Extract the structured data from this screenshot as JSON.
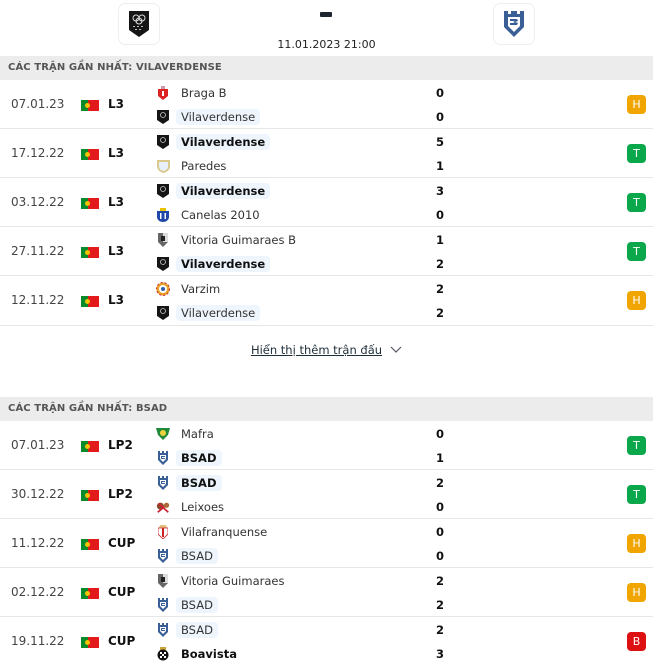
{
  "header": {
    "home_logo": "vilaverdense-crest",
    "away_logo": "bsad-crest",
    "score": "-",
    "match_time": "11.01.2023 21:00"
  },
  "colors": {
    "draw": "#f0a500",
    "win": "#0aa84a",
    "loss": "#dd1111",
    "highlight": "#eef5fd"
  },
  "sections": [
    {
      "title": "CÁC TRẬN GẦN NHẤT: VILAVERDENSE",
      "matches": [
        {
          "date": "07.01.23",
          "league": "L3",
          "home": {
            "name": "Braga B",
            "logo": "braga-crest",
            "hl": false,
            "win": false
          },
          "away": {
            "name": "Vilaverdense",
            "logo": "vilaverdense-crest",
            "hl": true,
            "win": false
          },
          "score_home": "0",
          "score_away": "0",
          "result": "H",
          "result_type": "draw"
        },
        {
          "date": "17.12.22",
          "league": "L3",
          "home": {
            "name": "Vilaverdense",
            "logo": "vilaverdense-crest",
            "hl": true,
            "win": true
          },
          "away": {
            "name": "Paredes",
            "logo": "paredes-crest",
            "hl": false,
            "win": false
          },
          "score_home": "5",
          "score_away": "1",
          "result": "T",
          "result_type": "win"
        },
        {
          "date": "03.12.22",
          "league": "L3",
          "home": {
            "name": "Vilaverdense",
            "logo": "vilaverdense-crest",
            "hl": true,
            "win": true
          },
          "away": {
            "name": "Canelas 2010",
            "logo": "canelas-crest",
            "hl": false,
            "win": false
          },
          "score_home": "3",
          "score_away": "0",
          "result": "T",
          "result_type": "win"
        },
        {
          "date": "27.11.22",
          "league": "L3",
          "home": {
            "name": "Vitoria Guimaraes B",
            "logo": "vitoria-crest",
            "hl": false,
            "win": false
          },
          "away": {
            "name": "Vilaverdense",
            "logo": "vilaverdense-crest",
            "hl": true,
            "win": true
          },
          "score_home": "1",
          "score_away": "2",
          "result": "T",
          "result_type": "win"
        },
        {
          "date": "12.11.22",
          "league": "L3",
          "home": {
            "name": "Varzim",
            "logo": "varzim-crest",
            "hl": false,
            "win": false
          },
          "away": {
            "name": "Vilaverdense",
            "logo": "vilaverdense-crest",
            "hl": true,
            "win": false
          },
          "score_home": "2",
          "score_away": "2",
          "result": "H",
          "result_type": "draw"
        }
      ],
      "show_more": "Hiển thị thêm trận đấu"
    },
    {
      "title": "CÁC TRẬN GẦN NHẤT: BSAD",
      "matches": [
        {
          "date": "07.01.23",
          "league": "LP2",
          "home": {
            "name": "Mafra",
            "logo": "mafra-crest",
            "hl": false,
            "win": false
          },
          "away": {
            "name": "BSAD",
            "logo": "bsad-crest",
            "hl": true,
            "win": true
          },
          "score_home": "0",
          "score_away": "1",
          "result": "T",
          "result_type": "win"
        },
        {
          "date": "30.12.22",
          "league": "LP2",
          "home": {
            "name": "BSAD",
            "logo": "bsad-crest",
            "hl": true,
            "win": true
          },
          "away": {
            "name": "Leixoes",
            "logo": "leixoes-crest",
            "hl": false,
            "win": false
          },
          "score_home": "2",
          "score_away": "0",
          "result": "T",
          "result_type": "win"
        },
        {
          "date": "11.12.22",
          "league": "CUP",
          "home": {
            "name": "Vilafranquense",
            "logo": "vilafranquense-crest",
            "hl": false,
            "win": false
          },
          "away": {
            "name": "BSAD",
            "logo": "bsad-crest",
            "hl": true,
            "win": false
          },
          "score_home": "0",
          "score_away": "0",
          "result": "H",
          "result_type": "draw"
        },
        {
          "date": "02.12.22",
          "league": "CUP",
          "home": {
            "name": "Vitoria Guimaraes",
            "logo": "vitoria-crest",
            "hl": false,
            "win": false
          },
          "away": {
            "name": "BSAD",
            "logo": "bsad-crest",
            "hl": true,
            "win": false
          },
          "score_home": "2",
          "score_away": "2",
          "result": "H",
          "result_type": "draw"
        },
        {
          "date": "19.11.22",
          "league": "CUP",
          "home": {
            "name": "BSAD",
            "logo": "bsad-crest",
            "hl": true,
            "win": false
          },
          "away": {
            "name": "Boavista",
            "logo": "boavista-crest",
            "hl": false,
            "win": true
          },
          "score_home": "2",
          "score_away": "3",
          "result": "B",
          "result_type": "loss"
        }
      ]
    }
  ]
}
